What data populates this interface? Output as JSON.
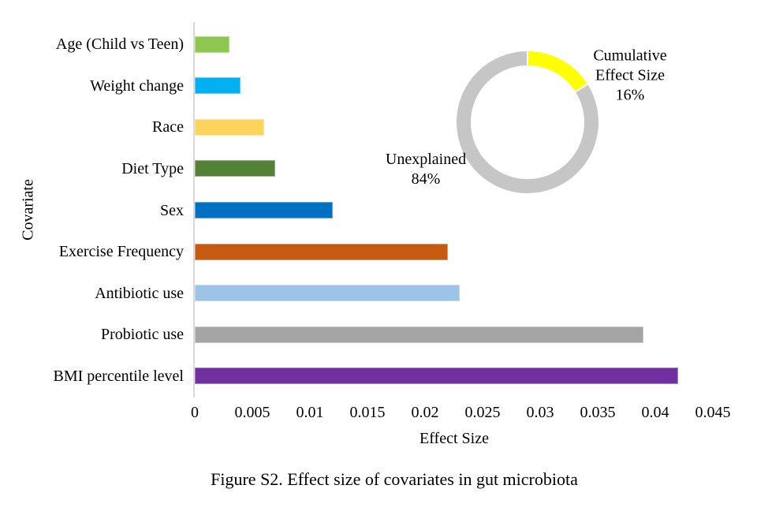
{
  "figure": {
    "caption": "Figure S2. Effect size of covariates in gut microbiota"
  },
  "colors": {
    "background": "#FFFFFF",
    "axis_line": "#D9D9D9",
    "text": "#000000"
  },
  "chart_data": [
    {
      "type": "bar",
      "orientation": "horizontal",
      "title": "",
      "xlabel": "Effect Size",
      "ylabel": "Covariate",
      "categories": [
        "Age (Child vs Teen)",
        "Weight change",
        "Race",
        "Diet Type",
        "Sex",
        "Exercise Frequency",
        "Antibiotic use",
        "Probiotic use",
        "BMI percentile level"
      ],
      "values": [
        0.003,
        0.004,
        0.006,
        0.007,
        0.012,
        0.022,
        0.023,
        0.039,
        0.042
      ],
      "colors": [
        "#8DC750",
        "#00B0F0",
        "#FDD55C",
        "#538135",
        "#0070C0",
        "#C55A11",
        "#9DC3E6",
        "#A5A5A5",
        "#7030A0"
      ],
      "xlim": [
        0,
        0.045
      ],
      "x_ticks": [
        "0",
        "0.005",
        "0.01",
        "0.015",
        "0.02",
        "0.025",
        "0.03",
        "0.035",
        "0.04",
        "0.045"
      ],
      "grid": false,
      "legend": "none"
    },
    {
      "type": "pie",
      "subtype": "donut",
      "start_angle": "top",
      "direction": "clockwise",
      "slices": [
        {
          "label": "Cumulative Effect Size",
          "value": 16,
          "pct_label": "16%",
          "display_label": "Cumulative\nEffect Size\n16%",
          "color": "#FFFF00"
        },
        {
          "label": "Unexplained",
          "value": 84,
          "pct_label": "84%",
          "display_label": "Unexplained\n84%",
          "color": "#C6C6C6"
        }
      ]
    }
  ]
}
